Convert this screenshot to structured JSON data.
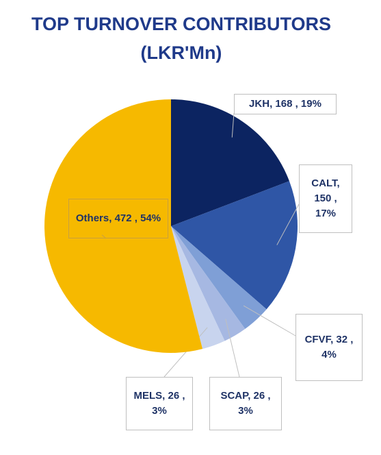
{
  "chart_data": {
    "type": "pie",
    "title": "TOP TURNOVER CONTRIBUTORS (LKR'Mn)",
    "categories": [
      "JKH",
      "CALT",
      "CFVF",
      "SCAP",
      "MELS",
      "Others"
    ],
    "values": [
      168,
      150,
      32,
      26,
      26,
      472
    ],
    "value_labels": [
      ", 168 , 19%",
      ", 150 , 17%",
      ", 32 , 4%",
      ", 26 , 3%",
      ", 26 , 3%",
      ", 472 , 54%"
    ],
    "colors": [
      "#0c2461",
      "#2f56a6",
      "#7f9fd6",
      "#a6b8e2",
      "#c8d4ee",
      "#f6b900"
    ]
  }
}
